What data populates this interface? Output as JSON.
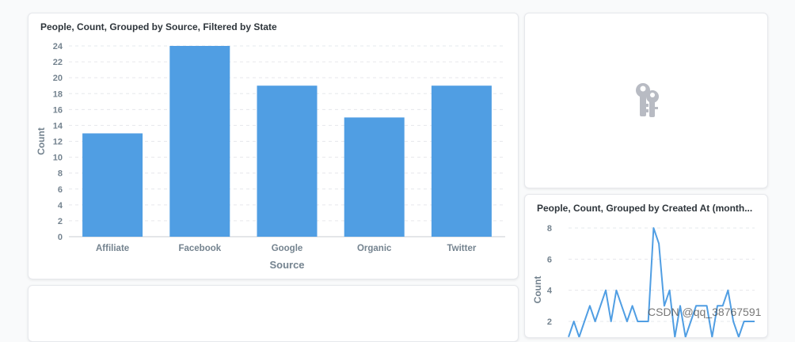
{
  "colors": {
    "bar": "#509ee3",
    "line": "#509ee3",
    "axis_text": "#74838f",
    "title": "#2e353b",
    "grid": "#e6e8ec",
    "icon": "#b8bbc3"
  },
  "chart_data": [
    {
      "type": "bar",
      "title": "People, Count, Grouped by Source, Filtered by State",
      "xlabel": "Source",
      "ylabel": "Count",
      "categories": [
        "Affiliate",
        "Facebook",
        "Google",
        "Organic",
        "Twitter"
      ],
      "values": [
        13,
        24,
        19,
        15,
        19
      ],
      "ylim": [
        0,
        24
      ],
      "yticks": [
        "0",
        "2",
        "4",
        "6",
        "8",
        "10",
        "12",
        "14",
        "16",
        "18",
        "20",
        "22",
        "24"
      ],
      "grid": true
    },
    {
      "type": "line",
      "title": "People, Count, Grouped by Created At (month...",
      "ylabel": "Count",
      "yticks": [
        "2",
        "4",
        "6",
        "8"
      ],
      "values": [
        1,
        2,
        1,
        2,
        3,
        2,
        3,
        4,
        2,
        4,
        3,
        2,
        3,
        2,
        2,
        2,
        8,
        7,
        3,
        4,
        1,
        3,
        1,
        2,
        3,
        3,
        3,
        1,
        3,
        3,
        4,
        2,
        1,
        2,
        2,
        2
      ]
    }
  ],
  "empty_card": {
    "icon": "keys-icon"
  },
  "watermark": "CSDN @qq_38767591"
}
